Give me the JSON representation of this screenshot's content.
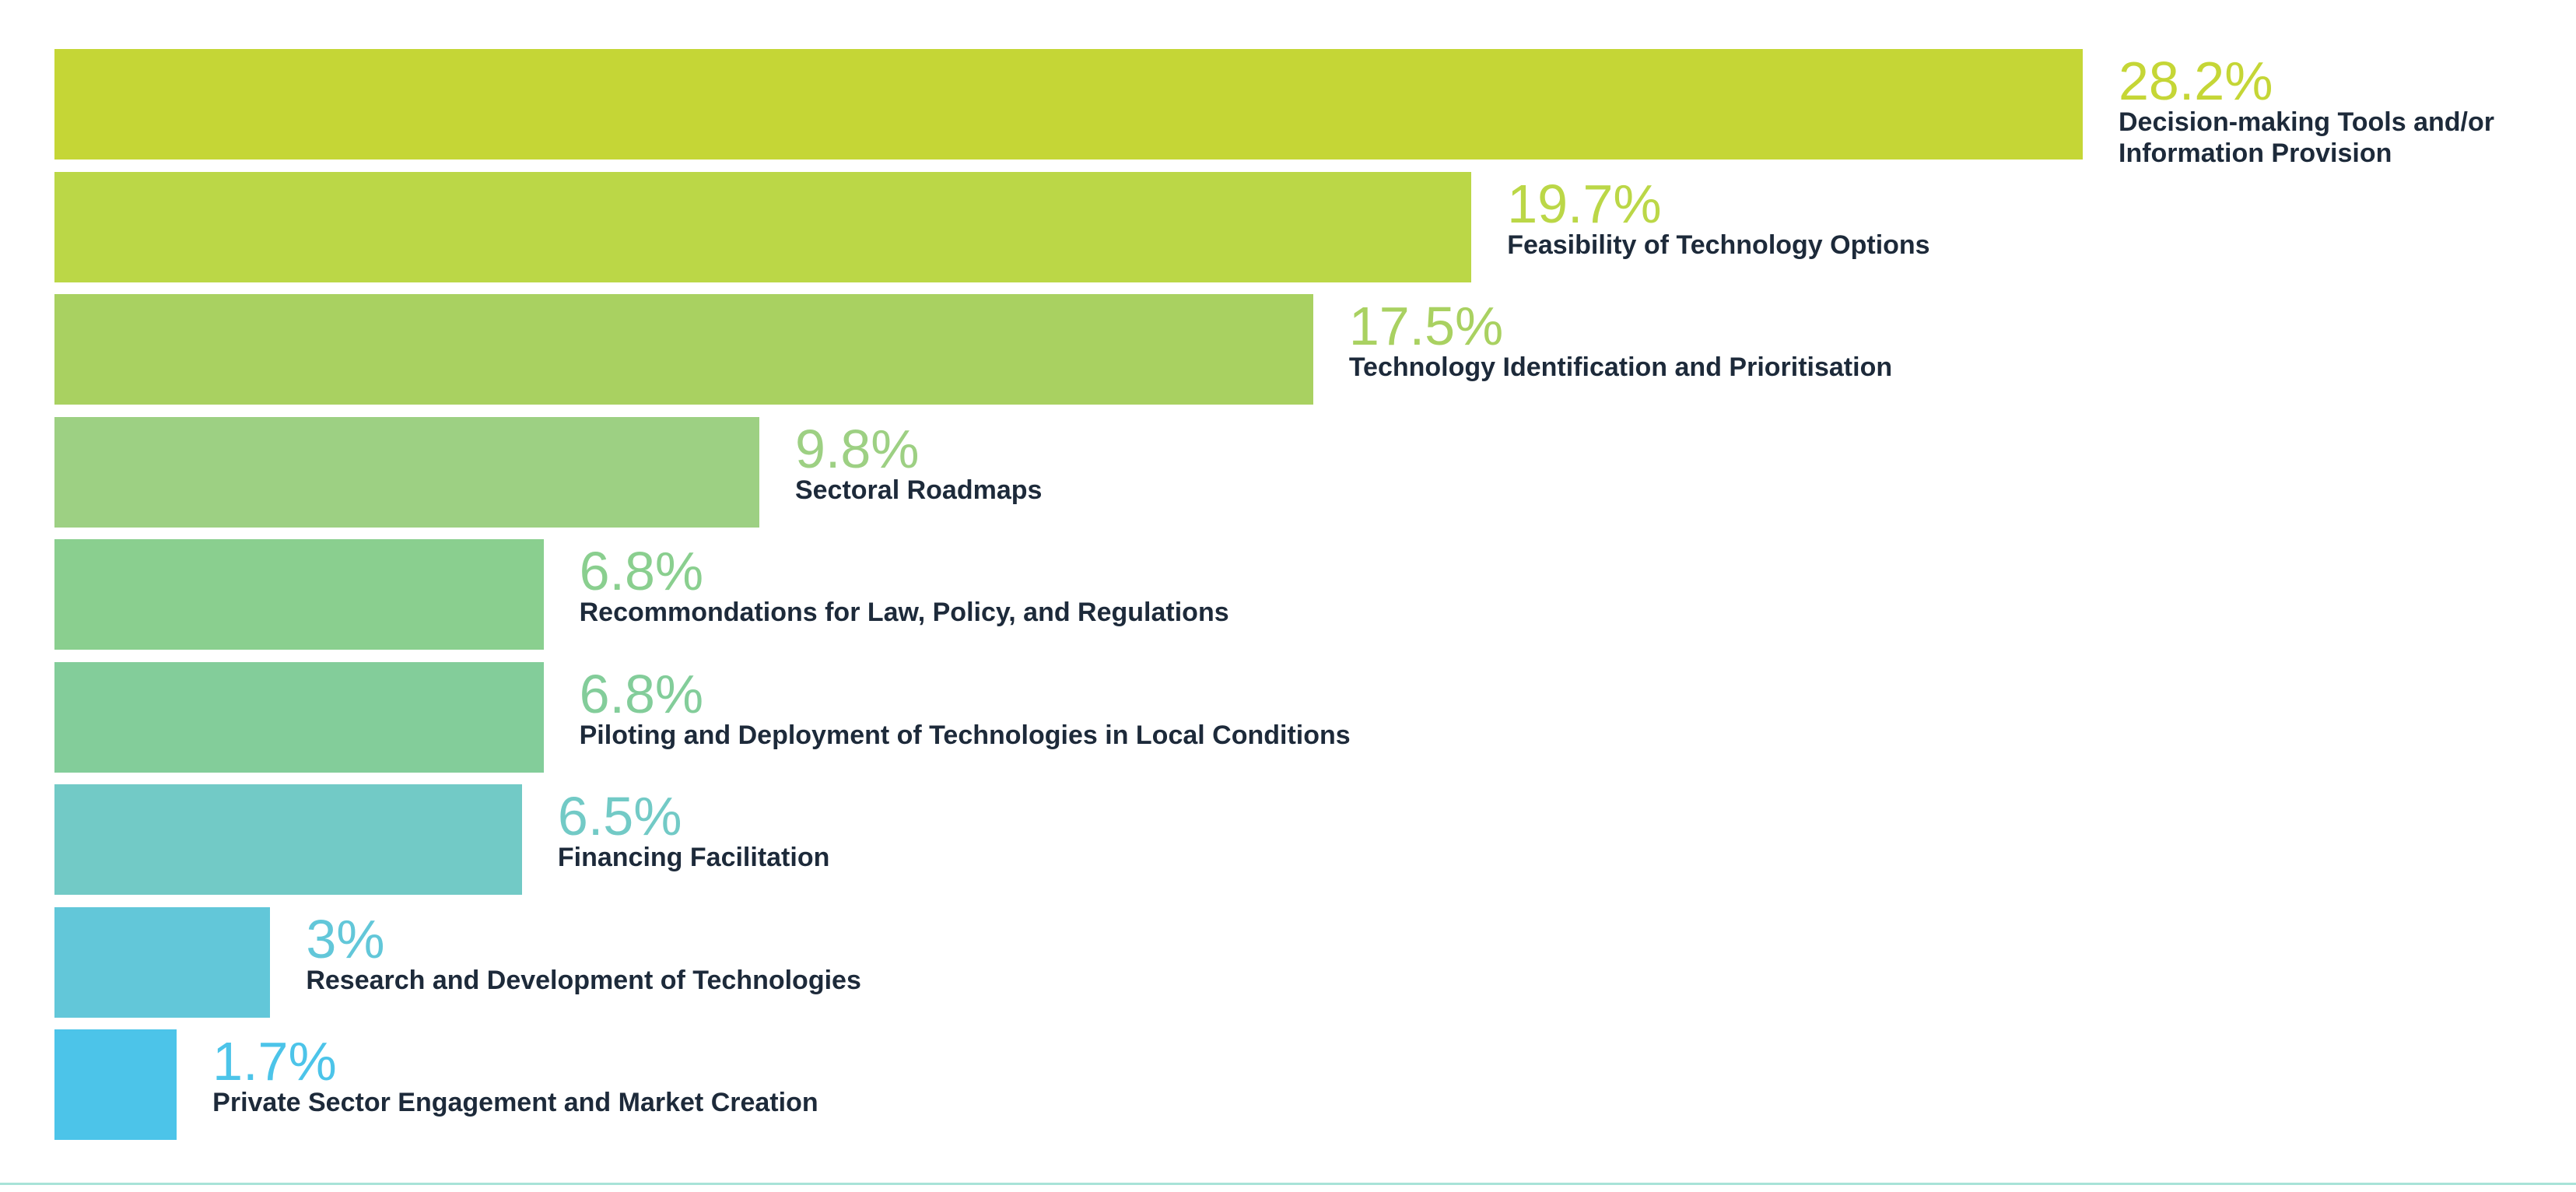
{
  "chart_data": {
    "type": "bar",
    "orientation": "horizontal",
    "title": "",
    "xlabel": "",
    "ylabel": "",
    "xlim": [
      0,
      28.2
    ],
    "unit": "%",
    "grid": false,
    "categories": [
      [
        "Decision-making Tools and/or",
        "Information Provision"
      ],
      [
        "Feasibility of Technology Options"
      ],
      [
        "Technology Identification and Prioritisation"
      ],
      [
        "Sectoral Roadmaps"
      ],
      [
        "Recommondations for Law, Policy, and Regulations"
      ],
      [
        "Piloting and Deployment of Technologies in Local Conditions"
      ],
      [
        "Financing Facilitation"
      ],
      [
        "Research and Development of Technologies"
      ],
      [
        "Private Sector Engagement and Market Creation"
      ]
    ],
    "values": [
      28.2,
      19.7,
      17.5,
      9.8,
      6.8,
      6.8,
      6.5,
      3,
      1.7
    ],
    "value_labels": [
      "28.2%",
      "19.7%",
      "17.5%",
      "9.8%",
      "6.8%",
      "6.8%",
      "6.5%",
      "3%",
      "1.7%"
    ],
    "colors": [
      "#c5d636",
      "#bbd747",
      "#a9d161",
      "#9dd083",
      "#8acf8f",
      "#83cd9a",
      "#72cac6",
      "#62c7d9",
      "#4cc4e9"
    ],
    "label_color": "#1d2a3a",
    "baseline_color": "#a8e3d8"
  }
}
